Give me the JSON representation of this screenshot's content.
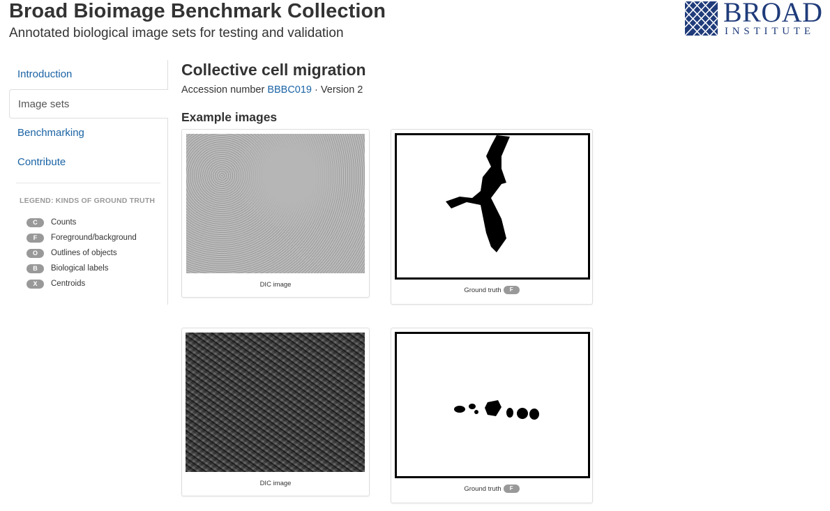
{
  "header": {
    "title": "Broad Bioimage Benchmark Collection",
    "subtitle": "Annotated biological image sets for testing and validation"
  },
  "logo": {
    "line1": "BROAD",
    "line2": "INSTITUTE",
    "color": "#1f3b7a"
  },
  "sidebar": {
    "items": [
      {
        "label": "Introduction",
        "active": false
      },
      {
        "label": "Image sets",
        "active": true
      },
      {
        "label": "Benchmarking",
        "active": false
      },
      {
        "label": "Contribute",
        "active": false
      }
    ],
    "legend_title": "LEGEND: KINDS OF GROUND TRUTH",
    "legend": [
      {
        "code": "C",
        "label": "Counts"
      },
      {
        "code": "F",
        "label": "Foreground/background"
      },
      {
        "code": "O",
        "label": "Outlines of objects"
      },
      {
        "code": "B",
        "label": "Biological labels"
      },
      {
        "code": "X",
        "label": "Centroids"
      }
    ]
  },
  "main": {
    "heading": "Collective cell migration",
    "accession_prefix": "Accession number",
    "accession_id": "BBBC019",
    "version_text": "· Version 2",
    "examples_heading": "Example images",
    "examples": [
      {
        "dic_caption": "DIC image",
        "gt_caption": "Ground truth",
        "gt_badge": "F"
      },
      {
        "dic_caption": "DIC image",
        "gt_caption": "Ground truth",
        "gt_badge": "F"
      }
    ]
  },
  "colors": {
    "link": "#1a63a5",
    "badge": "#999999",
    "text": "#333333"
  }
}
